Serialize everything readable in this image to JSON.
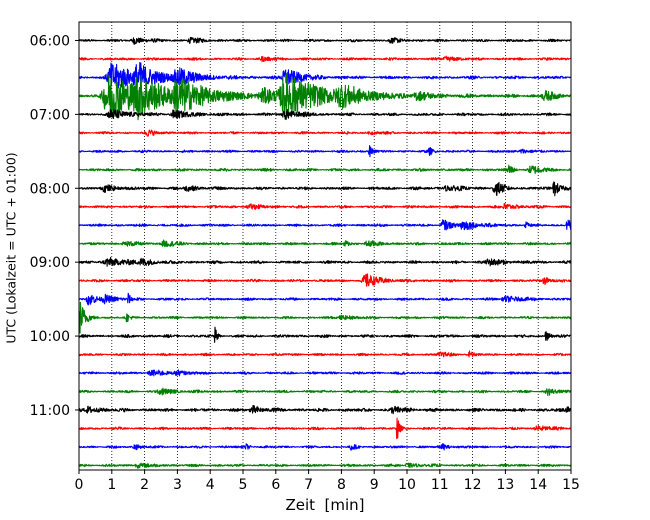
{
  "chart_data": {
    "type": "line",
    "title": "",
    "xlabel": "Zeit  [min]",
    "ylabel": "UTC (Lokalzeit = UTC + 01:00)",
    "xlim": [
      0,
      15
    ],
    "x_ticks": [
      0,
      1,
      2,
      3,
      4,
      5,
      6,
      7,
      8,
      9,
      10,
      11,
      12,
      13,
      14,
      15
    ],
    "y_tick_labels": [
      "06:00",
      "07:00",
      "08:00",
      "09:00",
      "10:00",
      "11:00"
    ],
    "y_tick_trace_index": [
      0,
      4,
      8,
      12,
      16,
      20
    ],
    "trace_minutes": 15,
    "grid": "vertical dotted",
    "colors": [
      "#000000",
      "#ff0000",
      "#0000ff",
      "#008000"
    ],
    "traces": [
      {
        "start": "06:00",
        "noise": 0.35,
        "events": [
          [
            1.7,
            0.8,
            0.3
          ],
          [
            3.4,
            0.6,
            0.3
          ],
          [
            9.5,
            0.5,
            0.3
          ]
        ]
      },
      {
        "start": "06:15",
        "noise": 0.35,
        "events": [
          [
            5.6,
            0.5,
            0.3
          ],
          [
            11.2,
            0.6,
            0.3
          ]
        ]
      },
      {
        "start": "06:30",
        "noise": 0.4,
        "events": [
          [
            1.0,
            3.5,
            0.8
          ],
          [
            1.8,
            2.8,
            0.4
          ],
          [
            3.0,
            2.2,
            0.5
          ],
          [
            6.3,
            2.5,
            0.4
          ]
        ]
      },
      {
        "start": "06:45",
        "noise": 0.45,
        "events": [
          [
            0.9,
            5.5,
            1.2
          ],
          [
            1.8,
            3.2,
            0.6
          ],
          [
            3.0,
            3.4,
            0.9
          ],
          [
            5.6,
            1.6,
            0.5
          ],
          [
            6.3,
            5.2,
            1.1
          ],
          [
            8.0,
            2.0,
            0.6
          ],
          [
            10.3,
            0.9,
            0.4
          ],
          [
            14.2,
            1.2,
            0.3
          ]
        ]
      },
      {
        "start": "07:00",
        "noise": 0.38,
        "events": [
          [
            1.0,
            1.2,
            0.5
          ],
          [
            2.9,
            1.0,
            0.4
          ],
          [
            6.3,
            1.1,
            0.4
          ]
        ]
      },
      {
        "start": "07:15",
        "noise": 0.33,
        "events": [
          [
            2.1,
            0.6,
            0.3
          ],
          [
            8.9,
            0.4,
            0.2
          ]
        ]
      },
      {
        "start": "07:30",
        "noise": 0.33,
        "events": [
          [
            8.85,
            1.6,
            0.08
          ],
          [
            10.7,
            0.8,
            0.1
          ],
          [
            13.5,
            0.6,
            0.2
          ]
        ]
      },
      {
        "start": "07:45",
        "noise": 0.38,
        "events": [
          [
            13.1,
            1.4,
            0.1
          ],
          [
            13.8,
            1.0,
            0.3
          ]
        ]
      },
      {
        "start": "08:00",
        "noise": 0.4,
        "events": [
          [
            0.8,
            0.7,
            0.4
          ],
          [
            3.3,
            0.6,
            0.3
          ],
          [
            12.7,
            1.8,
            0.2
          ],
          [
            14.5,
            2.0,
            0.15
          ],
          [
            11.2,
            0.6,
            0.4
          ]
        ]
      },
      {
        "start": "08:15",
        "noise": 0.35,
        "events": [
          [
            5.2,
            0.5,
            0.4
          ],
          [
            13.0,
            0.8,
            0.3
          ]
        ]
      },
      {
        "start": "08:30",
        "noise": 0.35,
        "events": [
          [
            11.1,
            1.4,
            0.2
          ],
          [
            11.7,
            1.3,
            0.4
          ],
          [
            13.6,
            1.5,
            0.05
          ],
          [
            14.9,
            1.3,
            0.2
          ]
        ]
      },
      {
        "start": "08:45",
        "noise": 0.35,
        "events": [
          [
            1.4,
            0.6,
            0.3
          ],
          [
            2.6,
            0.8,
            0.3
          ],
          [
            8.1,
            1.0,
            0.1
          ],
          [
            8.8,
            0.7,
            0.3
          ]
        ]
      },
      {
        "start": "09:00",
        "noise": 0.4,
        "events": [
          [
            0.9,
            1.1,
            0.5
          ],
          [
            1.9,
            0.8,
            0.3
          ],
          [
            12.5,
            0.8,
            0.4
          ]
        ]
      },
      {
        "start": "09:15",
        "noise": 0.35,
        "events": [
          [
            8.75,
            1.6,
            0.4
          ],
          [
            14.2,
            1.0,
            0.15
          ]
        ]
      },
      {
        "start": "09:30",
        "noise": 0.35,
        "events": [
          [
            0.3,
            1.4,
            0.2
          ],
          [
            0.8,
            1.0,
            0.3
          ],
          [
            1.5,
            1.4,
            0.05
          ],
          [
            13.0,
            0.7,
            0.5
          ]
        ]
      },
      {
        "start": "09:45",
        "noise": 0.33,
        "events": [
          [
            0.05,
            4.2,
            0.12
          ],
          [
            1.45,
            1.3,
            0.05
          ],
          [
            8.0,
            0.6,
            0.3
          ]
        ]
      },
      {
        "start": "10:00",
        "noise": 0.38,
        "events": [
          [
            4.15,
            1.9,
            0.05
          ],
          [
            14.25,
            1.1,
            0.1
          ]
        ]
      },
      {
        "start": "10:15",
        "noise": 0.33,
        "events": [
          [
            11.0,
            0.5,
            0.3
          ],
          [
            11.9,
            0.8,
            0.1
          ]
        ]
      },
      {
        "start": "10:30",
        "noise": 0.35,
        "events": [
          [
            2.2,
            0.7,
            0.4
          ],
          [
            3.0,
            0.5,
            0.3
          ]
        ]
      },
      {
        "start": "10:45",
        "noise": 0.35,
        "events": [
          [
            2.5,
            0.8,
            0.3
          ],
          [
            14.3,
            0.8,
            0.2
          ]
        ]
      },
      {
        "start": "11:00",
        "noise": 0.45,
        "events": [
          [
            0.3,
            0.8,
            0.3
          ],
          [
            5.3,
            0.9,
            0.3
          ],
          [
            9.6,
            0.8,
            0.3
          ],
          [
            14.9,
            0.8,
            0.2
          ]
        ]
      },
      {
        "start": "11:15",
        "noise": 0.35,
        "events": [
          [
            9.7,
            3.2,
            0.05
          ],
          [
            14.0,
            0.8,
            0.3
          ]
        ]
      },
      {
        "start": "11:30",
        "noise": 0.33,
        "events": [
          [
            1.7,
            0.7,
            0.15
          ],
          [
            5.1,
            0.6,
            0.1
          ],
          [
            8.3,
            0.7,
            0.1
          ],
          [
            11.1,
            0.6,
            0.2
          ]
        ]
      },
      {
        "start": "11:45",
        "noise": 0.35,
        "events": [
          [
            1.8,
            0.6,
            0.3
          ],
          [
            10.0,
            0.5,
            0.3
          ]
        ]
      }
    ]
  }
}
